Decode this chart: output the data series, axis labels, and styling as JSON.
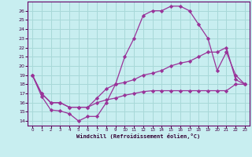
{
  "bg_color": "#c8eef0",
  "grid_color": "#a8d8d8",
  "line_color": "#993399",
  "xlabel": "Windchill (Refroidissement éolien,°C)",
  "xlim": [
    -0.5,
    23.5
  ],
  "ylim": [
    13.5,
    27.0
  ],
  "yticks": [
    14,
    15,
    16,
    17,
    18,
    19,
    20,
    21,
    22,
    23,
    24,
    25,
    26
  ],
  "xticks": [
    0,
    1,
    2,
    3,
    4,
    5,
    6,
    7,
    8,
    9,
    10,
    11,
    12,
    13,
    14,
    15,
    16,
    17,
    18,
    19,
    20,
    21,
    22,
    23
  ],
  "line1_x": [
    0,
    1,
    2,
    3,
    4,
    5,
    6,
    7,
    8,
    9,
    10,
    11,
    12,
    13,
    14,
    15,
    16,
    17,
    18,
    19,
    20,
    21,
    22,
    23
  ],
  "line1_y": [
    19.0,
    16.7,
    15.2,
    15.1,
    14.8,
    14.0,
    14.5,
    14.5,
    16.0,
    18.0,
    21.0,
    23.0,
    25.5,
    26.0,
    26.0,
    26.5,
    26.5,
    26.0,
    24.5,
    23.0,
    19.5,
    21.5,
    19.0,
    18.0
  ],
  "line2_x": [
    0,
    1,
    2,
    3,
    4,
    5,
    6,
    7,
    8,
    9,
    10,
    11,
    12,
    13,
    14,
    15,
    16,
    17,
    18,
    19,
    20,
    21,
    22,
    23
  ],
  "line2_y": [
    19.0,
    17.0,
    16.0,
    16.0,
    15.5,
    15.5,
    15.5,
    16.5,
    17.5,
    18.0,
    18.2,
    18.5,
    19.0,
    19.2,
    19.5,
    20.0,
    20.3,
    20.5,
    21.0,
    21.5,
    21.5,
    22.0,
    18.5,
    18.0
  ],
  "line3_x": [
    0,
    1,
    2,
    3,
    4,
    5,
    6,
    7,
    8,
    9,
    10,
    11,
    12,
    13,
    14,
    15,
    16,
    17,
    18,
    19,
    20,
    21,
    22,
    23
  ],
  "line3_y": [
    19.0,
    17.0,
    16.0,
    16.0,
    15.5,
    15.5,
    15.5,
    16.0,
    16.3,
    16.5,
    16.8,
    17.0,
    17.2,
    17.3,
    17.3,
    17.3,
    17.3,
    17.3,
    17.3,
    17.3,
    17.3,
    17.3,
    18.0,
    18.0
  ]
}
